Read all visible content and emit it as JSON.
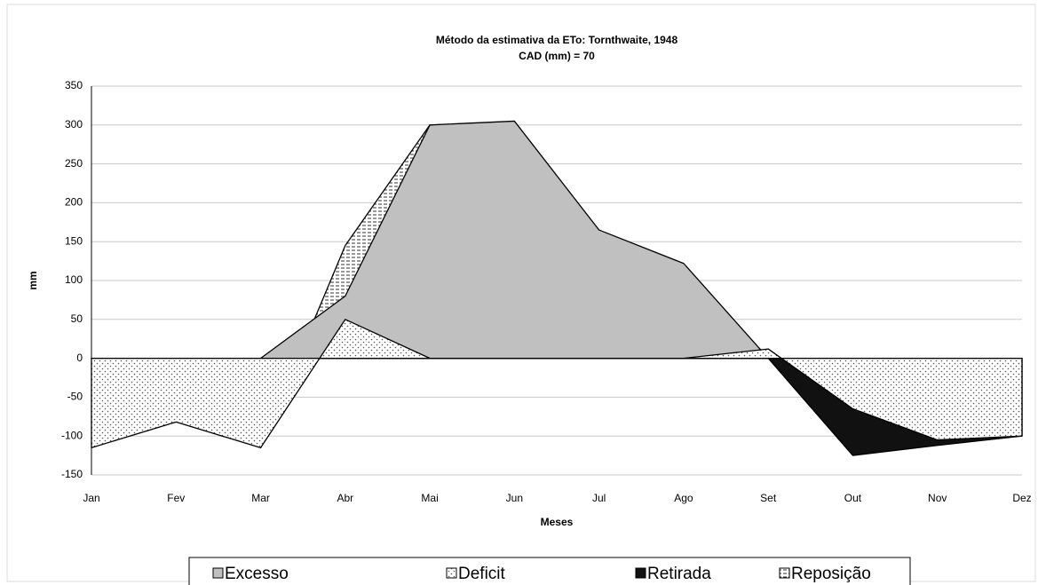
{
  "chart_data": {
    "type": "area",
    "title": "Método da estimativa da ETo: Tornthwaite, 1948",
    "subtitle": "CAD (mm) = 70",
    "xlabel": "Meses",
    "ylabel": "mm",
    "categories": [
      "Jan",
      "Fev",
      "Mar",
      "Abr",
      "Mai",
      "Jun",
      "Jul",
      "Ago",
      "Set",
      "Out",
      "Nov",
      "Dez"
    ],
    "series": [
      {
        "name": "Excesso",
        "color": "#c0c0c0",
        "values": [
          0,
          0,
          0,
          80,
          300,
          305,
          165,
          122,
          0,
          0,
          0,
          0
        ]
      },
      {
        "name": "Deficit",
        "color": "#ffffff",
        "values": [
          -115,
          -82,
          -115,
          50,
          0,
          0,
          0,
          0,
          12,
          -65,
          -105,
          -100
        ]
      },
      {
        "name": "Retirada",
        "color": "#111111",
        "values": [
          0,
          0,
          0,
          0,
          0,
          0,
          0,
          0,
          0,
          -125,
          -112,
          -100
        ]
      },
      {
        "name": "Reposição",
        "color": "#ffffff",
        "values": [
          0,
          0,
          -115,
          145,
          300,
          0,
          0,
          0,
          0,
          0,
          0,
          0
        ]
      }
    ],
    "ylim": [
      -150,
      350
    ],
    "yticks": [
      -150,
      -100,
      -50,
      0,
      50,
      100,
      150,
      200,
      250,
      300,
      350
    ],
    "grid": true
  }
}
